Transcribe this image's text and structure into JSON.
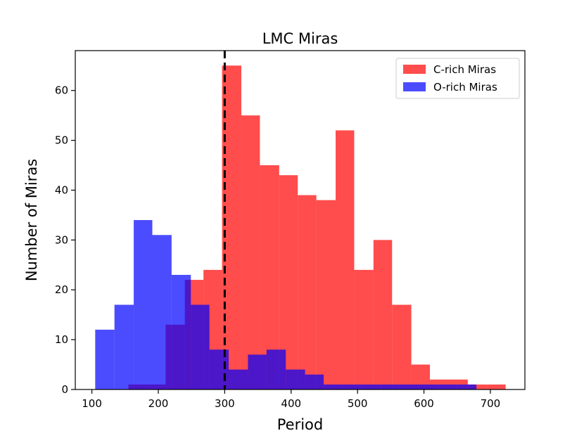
{
  "chart_data": {
    "type": "bar",
    "title": "LMC Miras",
    "xlabel": "Period",
    "ylabel": "Number of Miras",
    "xlim": [
      75,
      752
    ],
    "ylim": [
      0,
      68
    ],
    "xticks": [
      100,
      200,
      300,
      400,
      500,
      600,
      700
    ],
    "yticks": [
      0,
      10,
      20,
      30,
      40,
      50,
      60
    ],
    "xtick_labels": [
      "100",
      "200",
      "300",
      "400",
      "500",
      "600",
      "700"
    ],
    "ytick_labels": [
      "0",
      "10",
      "20",
      "30",
      "40",
      "50",
      "60"
    ],
    "grid": false,
    "legend_position": "top-right",
    "reference_line": {
      "x": 300,
      "style": "dashed",
      "color": "#000000"
    },
    "series": [
      {
        "name": "C-rich Miras",
        "color": "#ff0000",
        "opacity": 0.7,
        "bin_edges": [
          155,
          183,
          211,
          240,
          268,
          296,
          325,
          353,
          382,
          410,
          438,
          467,
          495,
          524,
          552,
          581,
          609,
          637,
          666,
          694,
          723
        ],
        "values": [
          1,
          1,
          13,
          22,
          24,
          65,
          55,
          45,
          43,
          39,
          38,
          52,
          24,
          30,
          17,
          5,
          2,
          2,
          1,
          1
        ]
      },
      {
        "name": "O-rich Miras",
        "color": "#0000ff",
        "opacity": 0.7,
        "bin_edges": [
          105,
          134,
          163,
          191,
          220,
          249,
          277,
          306,
          335,
          363,
          392,
          421,
          449,
          478,
          507,
          535,
          564,
          593,
          621,
          650,
          679
        ],
        "values": [
          12,
          17,
          34,
          31,
          23,
          17,
          8,
          4,
          7,
          8,
          4,
          3,
          1,
          1,
          1,
          1,
          1,
          1,
          1,
          1
        ]
      }
    ]
  }
}
